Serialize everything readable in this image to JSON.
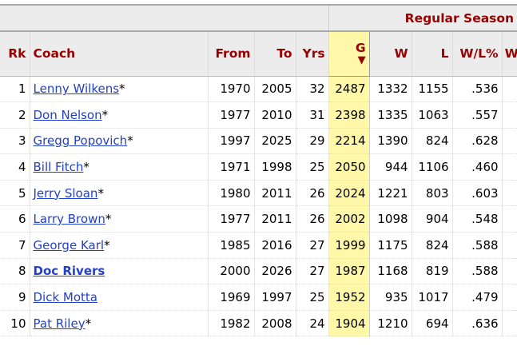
{
  "group_header": "Regular Season",
  "columns": {
    "rk": "Rk",
    "coach": "Coach",
    "from": "From",
    "to": "To",
    "yrs": "Yrs",
    "g": "G",
    "sort_indicator": "▼",
    "w": "W",
    "l": "L",
    "wl": "W/L%",
    "next": "W"
  },
  "rows": [
    {
      "rk": "1",
      "coach": "Lenny Wilkens",
      "hof": "*",
      "bold": false,
      "from": "1970",
      "to": "2005",
      "yrs": "32",
      "g": "2487",
      "w": "1332",
      "l": "1155",
      "wl": ".536"
    },
    {
      "rk": "2",
      "coach": "Don Nelson",
      "hof": "*",
      "bold": false,
      "from": "1977",
      "to": "2010",
      "yrs": "31",
      "g": "2398",
      "w": "1335",
      "l": "1063",
      "wl": ".557"
    },
    {
      "rk": "3",
      "coach": "Gregg Popovich",
      "hof": "*",
      "bold": false,
      "from": "1997",
      "to": "2025",
      "yrs": "29",
      "g": "2214",
      "w": "1390",
      "l": "824",
      "wl": ".628"
    },
    {
      "rk": "4",
      "coach": "Bill Fitch",
      "hof": "*",
      "bold": false,
      "from": "1971",
      "to": "1998",
      "yrs": "25",
      "g": "2050",
      "w": "944",
      "l": "1106",
      "wl": ".460"
    },
    {
      "rk": "5",
      "coach": "Jerry Sloan",
      "hof": "*",
      "bold": false,
      "from": "1980",
      "to": "2011",
      "yrs": "26",
      "g": "2024",
      "w": "1221",
      "l": "803",
      "wl": ".603"
    },
    {
      "rk": "6",
      "coach": "Larry Brown",
      "hof": "*",
      "bold": false,
      "from": "1977",
      "to": "2011",
      "yrs": "26",
      "g": "2002",
      "w": "1098",
      "l": "904",
      "wl": ".548"
    },
    {
      "rk": "7",
      "coach": "George Karl",
      "hof": "*",
      "bold": false,
      "from": "1985",
      "to": "2016",
      "yrs": "27",
      "g": "1999",
      "w": "1175",
      "l": "824",
      "wl": ".588"
    },
    {
      "rk": "8",
      "coach": "Doc Rivers",
      "hof": "",
      "bold": true,
      "from": "2000",
      "to": "2026",
      "yrs": "27",
      "g": "1987",
      "w": "1168",
      "l": "819",
      "wl": ".588"
    },
    {
      "rk": "9",
      "coach": "Dick Motta",
      "hof": "",
      "bold": false,
      "from": "1969",
      "to": "1997",
      "yrs": "25",
      "g": "1952",
      "w": "935",
      "l": "1017",
      "wl": ".479"
    },
    {
      "rk": "10",
      "coach": "Pat Riley",
      "hof": "*",
      "bold": false,
      "from": "1982",
      "to": "2008",
      "yrs": "24",
      "g": "1904",
      "w": "1210",
      "l": "694",
      "wl": ".636"
    }
  ]
}
